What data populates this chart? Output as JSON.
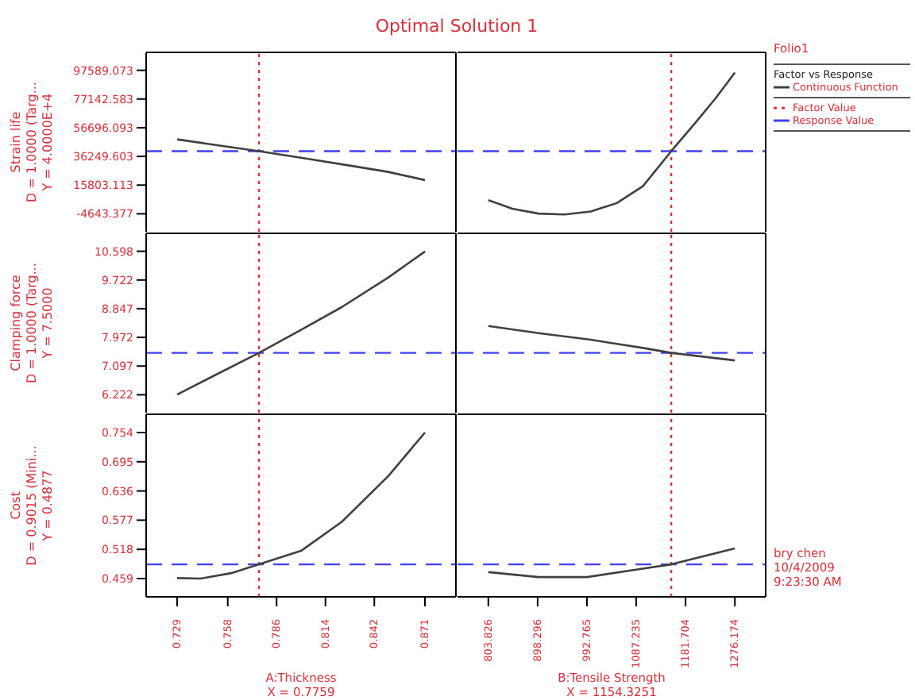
{
  "chart_data": [
    {
      "type": "line",
      "title": "Optimal Solution 1",
      "ylabel": "Strain life\nD = 1.0000 (Targ...\nY = 4.0000E+4",
      "x": [
        0.729,
        0.745,
        0.7759,
        0.8,
        0.83,
        0.85,
        0.871
      ],
      "series": [
        {
          "color": "#404040",
          "values": [
            48400,
            45500,
            40000,
            35300,
            29300,
            25200,
            19400
          ]
        }
      ],
      "xlim": [
        0.71125,
        0.88875
      ],
      "ylim": [
        -17422.4,
        110368.1
      ],
      "yticks": [
        -4643.377,
        15803.113,
        36249.603,
        56696.093,
        77142.583,
        97589.073
      ],
      "tick_labels": "y",
      "ref_lines": [
        {
          "axis": "x",
          "value": 0.7759,
          "color": "#e03030",
          "line_style": "dotted"
        },
        {
          "axis": "y",
          "value": 40000,
          "color": "#4040ff",
          "line_style": "dashed"
        }
      ]
    },
    {
      "type": "line",
      "x": [
        803.826,
        850,
        900,
        950,
        1000,
        1050,
        1100,
        1154.3251,
        1200,
        1240,
        1276.174
      ],
      "series": [
        {
          "name": "Continuous Function",
          "color": "#404040",
          "values": [
            5100,
            -1000,
            -4500,
            -5100,
            -3000,
            3000,
            15000,
            40000,
            60000,
            78000,
            96000
          ]
        }
      ],
      "xlim": [
        744.78,
        1335.22
      ],
      "ylim": [
        -17422.4,
        110368.1
      ],
      "tick_labels": false,
      "legend": "right",
      "legend_title": "Factor vs Response",
      "annotations": [
        "Folio1"
      ],
      "ref_lines": [
        {
          "axis": "x",
          "value": 1154.3251,
          "label": "Factor Value",
          "color": "#e03030",
          "line_style": "dotted"
        },
        {
          "axis": "y",
          "value": 40000,
          "label": "Response Value",
          "color": "#4040ff",
          "line_style": "dashed"
        }
      ]
    },
    {
      "type": "line",
      "ylabel": "Clamping force\nD = 1.0000 (Targ...\nY = 7.5000",
      "x": [
        0.729,
        0.75,
        0.7759,
        0.8,
        0.8235,
        0.85,
        0.871
      ],
      "series": [
        {
          "color": "#404040",
          "values": [
            6.23,
            6.8,
            7.5,
            8.2,
            8.9,
            9.8,
            10.59
          ]
        }
      ],
      "xlim": [
        0.71125,
        0.88875
      ],
      "ylim": [
        5.675,
        11.145
      ],
      "yticks": [
        6.222,
        7.097,
        7.972,
        8.847,
        9.722,
        10.598
      ],
      "tick_labels": "y",
      "ref_lines": [
        {
          "axis": "x",
          "value": 0.7759,
          "color": "#e03030",
          "line_style": "dotted"
        },
        {
          "axis": "y",
          "value": 7.5,
          "color": "#4040ff",
          "line_style": "dashed"
        }
      ]
    },
    {
      "type": "line",
      "x": [
        803.826,
        900,
        1000,
        1100,
        1154.3251,
        1276.174
      ],
      "series": [
        {
          "color": "#404040",
          "values": [
            8.32,
            8.1,
            7.9,
            7.65,
            7.5,
            7.27
          ]
        }
      ],
      "xlim": [
        744.78,
        1335.22
      ],
      "ylim": [
        5.675,
        11.145
      ],
      "tick_labels": false,
      "ref_lines": [
        {
          "axis": "x",
          "value": 1154.3251,
          "color": "#e03030",
          "line_style": "dotted"
        },
        {
          "axis": "y",
          "value": 7.5,
          "color": "#4040ff",
          "line_style": "dashed"
        }
      ]
    },
    {
      "type": "line",
      "ylabel": "Cost\nD = 0.9015 (Mini...\nY = 0.4877",
      "xlabel": "A:Thickness\nX = 0.7759",
      "x": [
        0.729,
        0.7426,
        0.76,
        0.7759,
        0.8,
        0.8235,
        0.85,
        0.871
      ],
      "series": [
        {
          "color": "#404040",
          "values": [
            0.46,
            0.459,
            0.47,
            0.4877,
            0.515,
            0.574,
            0.666,
            0.754
          ]
        }
      ],
      "xlim": [
        0.71125,
        0.88875
      ],
      "xticks": [
        0.729,
        0.758,
        0.786,
        0.814,
        0.842,
        0.871
      ],
      "ylim": [
        0.422125,
        0.790875
      ],
      "yticks": [
        0.459,
        0.518,
        0.577,
        0.636,
        0.695,
        0.754
      ],
      "ref_lines": [
        {
          "axis": "x",
          "value": 0.7759,
          "color": "#e03030",
          "line_style": "dotted"
        },
        {
          "axis": "y",
          "value": 0.4877,
          "color": "#4040ff",
          "line_style": "dashed"
        }
      ]
    },
    {
      "type": "line",
      "xlabel": "B:Tensile Strength\nX = 1154.3251",
      "x": [
        803.826,
        900,
        992.765,
        1087.235,
        1154.3251,
        1276.174
      ],
      "series": [
        {
          "color": "#404040",
          "values": [
            0.472,
            0.462,
            0.462,
            0.477,
            0.4877,
            0.52
          ]
        }
      ],
      "xlim": [
        744.78,
        1335.22
      ],
      "xticks": [
        803.826,
        898.296,
        992.765,
        1087.235,
        1181.704,
        1276.174
      ],
      "ylim": [
        0.422125,
        0.790875
      ],
      "tick_labels": "x",
      "annotations": [
        "bry chen",
        "10/4/2009",
        "9:23:30 AM"
      ],
      "ref_lines": [
        {
          "axis": "x",
          "value": 1154.3251,
          "color": "#e03030",
          "line_style": "dotted"
        },
        {
          "axis": "y",
          "value": 0.4877,
          "color": "#4040ff",
          "line_style": "dashed"
        }
      ]
    }
  ]
}
